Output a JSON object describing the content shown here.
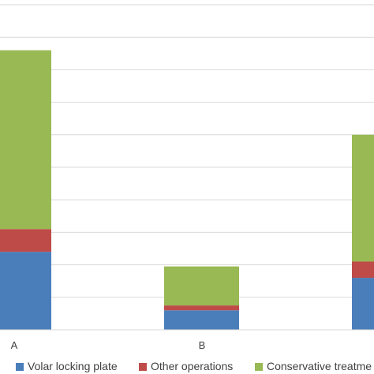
{
  "chart_data": {
    "type": "bar",
    "stacked": true,
    "categories": [
      "A",
      "B",
      ""
    ],
    "series": [
      {
        "name": "Volar locking plate",
        "color": "#4a7ebb",
        "values": [
          24,
          6,
          16
        ]
      },
      {
        "name": "Other operations",
        "color": "#be4b48",
        "values": [
          7,
          1.5,
          5
        ]
      },
      {
        "name": "Conservative treatment",
        "color": "#98b954",
        "values": [
          55,
          12,
          39
        ]
      }
    ],
    "ylim": [
      0,
      100
    ],
    "grid": true,
    "legend": "bottom",
    "title": "",
    "xlabel": "",
    "ylabel": ""
  },
  "legend": {
    "items": [
      "Volar locking plate",
      "Other operations",
      "Conservative treatme"
    ]
  }
}
